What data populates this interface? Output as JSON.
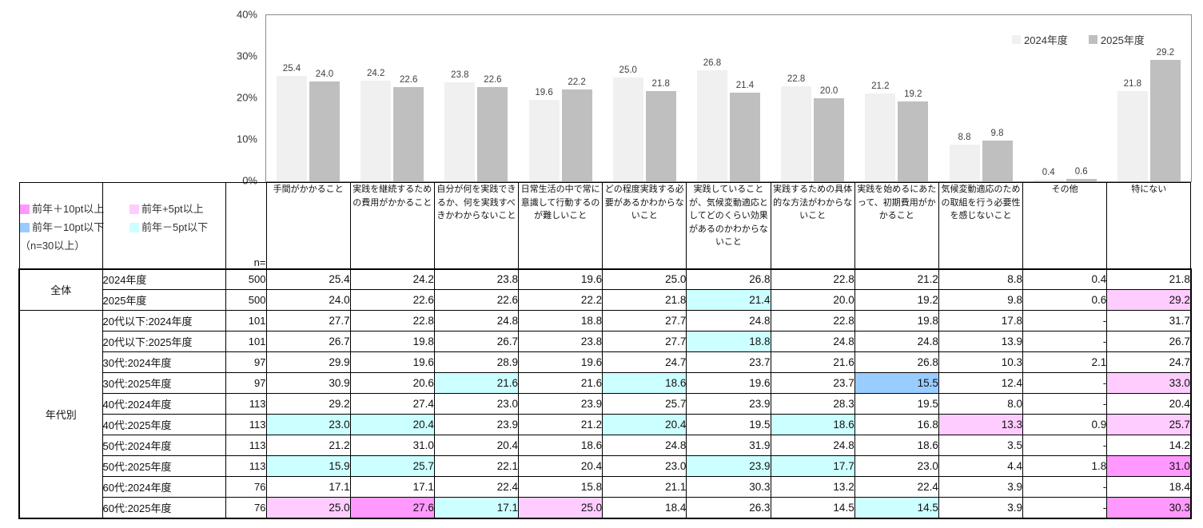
{
  "chart_data": {
    "type": "bar",
    "title": "",
    "xlabel": "",
    "ylabel": "",
    "ylim": [
      0,
      40
    ],
    "yticks": [
      "40%",
      "30%",
      "20%",
      "10%",
      "0%"
    ],
    "grid": false,
    "legend_position": "top-right",
    "categories": [
      "手間がかかること",
      "実践を継続するための費用がかかること",
      "自分が何を実践できるか、何を実践すべきかわからないこと",
      "日常生活の中で常に意識して行動するのが難しいこと",
      "どの程度実践する必要があるかわからないこと",
      "実践していることが、気候変動適応としてどのくらい効果があるのかわからないこと",
      "実践するための具体的な方法がわからないこと",
      "実践を始めるにあたって、初期費用がかかること",
      "気候変動適応のための取組を行う必要性を感じないこと",
      "その他",
      "特にない"
    ],
    "series": [
      {
        "name": "2024年度",
        "color": "#F0F0F0",
        "values": [
          25.4,
          24.2,
          23.8,
          19.6,
          25.0,
          26.8,
          22.8,
          21.2,
          8.8,
          0.4,
          21.8
        ]
      },
      {
        "name": "2025年度",
        "color": "#BFBFBF",
        "values": [
          24.0,
          22.6,
          22.6,
          22.2,
          21.8,
          21.4,
          20.0,
          19.2,
          9.8,
          0.6,
          29.2
        ]
      }
    ]
  },
  "colors": {
    "p10": "#FF99FF",
    "p5": "#FFCCFF",
    "m10": "#99CCFF",
    "m5": "#CCFFFF"
  },
  "diff_legend": {
    "items": [
      {
        "key": "p10",
        "label": "前年＋10pt以上"
      },
      {
        "key": "p5",
        "label": "前年+5pt以上"
      },
      {
        "key": "m10",
        "label": "前年－10pt以下"
      },
      {
        "key": "m5",
        "label": "前年－5pt以下"
      }
    ],
    "note": "（n=30以上）"
  },
  "table": {
    "n_header": "n=",
    "groups": [
      {
        "name": "全体",
        "span": 2
      },
      {
        "name": "年代別",
        "span": 10
      }
    ],
    "rows": [
      {
        "label": "2024年度",
        "n": "500",
        "values": [
          "25.4",
          "24.2",
          "23.8",
          "19.6",
          "25.0",
          "26.8",
          "22.8",
          "21.2",
          "8.8",
          "0.4",
          "21.8"
        ],
        "marks": [
          "",
          "",
          "",
          "",
          "",
          "",
          "",
          "",
          "",
          "",
          ""
        ]
      },
      {
        "label": "2025年度",
        "n": "500",
        "values": [
          "24.0",
          "22.6",
          "22.6",
          "22.2",
          "21.8",
          "21.4",
          "20.0",
          "19.2",
          "9.8",
          "0.6",
          "29.2"
        ],
        "marks": [
          "",
          "",
          "",
          "",
          "",
          "m5",
          "",
          "",
          "",
          "",
          "p5"
        ]
      },
      {
        "label": "20代以下:2024年度",
        "n": "101",
        "values": [
          "27.7",
          "22.8",
          "24.8",
          "18.8",
          "27.7",
          "24.8",
          "22.8",
          "19.8",
          "17.8",
          "-",
          "31.7"
        ],
        "marks": [
          "",
          "",
          "",
          "",
          "",
          "",
          "",
          "",
          "",
          "",
          ""
        ]
      },
      {
        "label": "20代以下:2025年度",
        "n": "101",
        "values": [
          "26.7",
          "19.8",
          "26.7",
          "23.8",
          "27.7",
          "18.8",
          "24.8",
          "24.8",
          "13.9",
          "-",
          "26.7"
        ],
        "marks": [
          "",
          "",
          "",
          "",
          "",
          "m5",
          "",
          "",
          "",
          "",
          ""
        ]
      },
      {
        "label": "30代:2024年度",
        "n": "97",
        "values": [
          "29.9",
          "19.6",
          "28.9",
          "19.6",
          "24.7",
          "23.7",
          "21.6",
          "26.8",
          "10.3",
          "2.1",
          "24.7"
        ],
        "marks": [
          "",
          "",
          "",
          "",
          "",
          "",
          "",
          "",
          "",
          "",
          ""
        ]
      },
      {
        "label": "30代:2025年度",
        "n": "97",
        "values": [
          "30.9",
          "20.6",
          "21.6",
          "21.6",
          "18.6",
          "19.6",
          "23.7",
          "15.5",
          "12.4",
          "-",
          "33.0"
        ],
        "marks": [
          "",
          "",
          "m5",
          "",
          "m5",
          "",
          "",
          "m10",
          "",
          "",
          "p5"
        ]
      },
      {
        "label": "40代:2024年度",
        "n": "113",
        "values": [
          "29.2",
          "27.4",
          "23.0",
          "23.9",
          "25.7",
          "23.9",
          "28.3",
          "19.5",
          "8.0",
          "-",
          "20.4"
        ],
        "marks": [
          "",
          "",
          "",
          "",
          "",
          "",
          "",
          "",
          "",
          "",
          ""
        ]
      },
      {
        "label": "40代:2025年度",
        "n": "113",
        "values": [
          "23.0",
          "20.4",
          "23.9",
          "21.2",
          "20.4",
          "19.5",
          "18.6",
          "16.8",
          "13.3",
          "0.9",
          "25.7"
        ],
        "marks": [
          "m5",
          "m5",
          "",
          "",
          "m5",
          "",
          "m5",
          "",
          "p5",
          "",
          "p5"
        ]
      },
      {
        "label": "50代:2024年度",
        "n": "113",
        "values": [
          "21.2",
          "31.0",
          "20.4",
          "18.6",
          "24.8",
          "31.9",
          "24.8",
          "18.6",
          "3.5",
          "-",
          "14.2"
        ],
        "marks": [
          "",
          "",
          "",
          "",
          "",
          "",
          "",
          "",
          "",
          "",
          ""
        ]
      },
      {
        "label": "50代:2025年度",
        "n": "113",
        "values": [
          "15.9",
          "25.7",
          "22.1",
          "20.4",
          "23.0",
          "23.9",
          "17.7",
          "23.0",
          "4.4",
          "1.8",
          "31.0"
        ],
        "marks": [
          "m5",
          "m5",
          "",
          "",
          "",
          "m5",
          "m5",
          "",
          "",
          "",
          "p10"
        ]
      },
      {
        "label": "60代:2024年度",
        "n": "76",
        "values": [
          "17.1",
          "17.1",
          "22.4",
          "15.8",
          "21.1",
          "30.3",
          "13.2",
          "22.4",
          "3.9",
          "-",
          "18.4"
        ],
        "marks": [
          "",
          "",
          "",
          "",
          "",
          "",
          "",
          "",
          "",
          "",
          ""
        ]
      },
      {
        "label": "60代:2025年度",
        "n": "76",
        "values": [
          "25.0",
          "27.6",
          "17.1",
          "25.0",
          "18.4",
          "26.3",
          "14.5",
          "14.5",
          "3.9",
          "-",
          "30.3"
        ],
        "marks": [
          "p5",
          "p10",
          "m5",
          "p5",
          "",
          "",
          "",
          "m5",
          "",
          "",
          "p10"
        ]
      }
    ]
  }
}
